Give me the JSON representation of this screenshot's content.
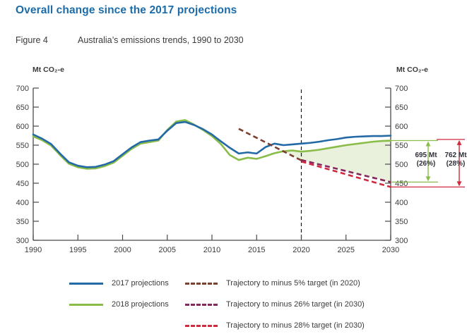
{
  "page": {
    "title": "Overall change since the 2017 projections",
    "figure_label": "Figure 4",
    "figure_caption": "Australia’s emissions trends, 1990 to 2030"
  },
  "colors": {
    "title_blue": "#1b6ca9",
    "text_dark": "#3b3b3b",
    "axis": "#4a4a4a",
    "blue": "#2269a6",
    "green": "#8abc49",
    "fill_green": "#e9f1dc",
    "brown": "#7d3f2e",
    "purple": "#84275c",
    "red": "#cf2a3e",
    "vline": "#1a1a1a",
    "annotation_text": "#30303a"
  },
  "chart_data": {
    "type": "line",
    "title": "Australia's emissions trends, 1990 to 2030",
    "unit_label": "Mt CO₂-e",
    "ylabel": "Mt CO₂-e",
    "xlabel": "",
    "ylim": [
      300,
      700
    ],
    "ytick_step": 50,
    "xticks": [
      1990,
      1995,
      2000,
      2005,
      2010,
      2015,
      2020,
      2025,
      2030
    ],
    "x_start": 1990,
    "x_end": 2030,
    "grid": false,
    "vline_year": 2020,
    "series": [
      {
        "name": "2017 projections",
        "style": "solid",
        "color_key": "blue",
        "x_start": 1990,
        "values": [
          578,
          567,
          553,
          528,
          505,
          496,
          492,
          493,
          499,
          508,
          526,
          544,
          558,
          562,
          565,
          588,
          608,
          611,
          603,
          592,
          578,
          560,
          543,
          528,
          531,
          528,
          545,
          554,
          550,
          552,
          554,
          556,
          559,
          563,
          566,
          570,
          572,
          573,
          574,
          574,
          575
        ]
      },
      {
        "name": "2018 projections",
        "style": "solid",
        "color_key": "green",
        "x_start": 1990,
        "values": [
          573,
          563,
          549,
          524,
          501,
          492,
          488,
          489,
          495,
          504,
          522,
          540,
          554,
          558,
          562,
          590,
          612,
          616,
          604,
          590,
          574,
          553,
          524,
          511,
          517,
          514,
          521,
          529,
          534,
          536,
          533,
          535,
          538,
          542,
          546,
          550,
          553,
          556,
          559,
          561,
          562
        ]
      },
      {
        "name": "Trajectory to minus 5% target (in 2020)",
        "style": "dashed",
        "color_key": "brown",
        "points": [
          [
            2013,
            593
          ],
          [
            2020,
            510
          ]
        ]
      },
      {
        "name": "Trajectory to minus 26% target (in 2030)",
        "style": "dashed",
        "color_key": "purple",
        "points": [
          [
            2020,
            511
          ],
          [
            2030,
            453
          ]
        ]
      },
      {
        "name": "Trajectory to minus 28% target (in 2030)",
        "style": "dashed",
        "color_key": "red",
        "points": [
          [
            2020,
            507
          ],
          [
            2030,
            440
          ]
        ]
      }
    ],
    "shade": {
      "top_series": "2018 projections",
      "start_year": 2018,
      "bottom_points": [
        [
          2018,
          533.7
        ],
        [
          2020,
          510
        ],
        [
          2030,
          453
        ]
      ],
      "fill_key": "fill_green"
    },
    "gap_annotations": [
      {
        "value_label": "695 Mt",
        "pct_label": "(26%)",
        "top_value": 562,
        "bottom_value": 453,
        "color_key": "green"
      },
      {
        "value_label": "762 Mt",
        "pct_label": "(28%)",
        "top_value": 565,
        "bottom_value": 440,
        "color_key": "red"
      }
    ]
  },
  "legend": {
    "items": [
      {
        "label": "2017 projections"
      },
      {
        "label": "2018 projections"
      },
      {
        "label": "Trajectory to minus 5% target (in 2020)"
      },
      {
        "label": "Trajectory to minus 26% target (in 2030)"
      },
      {
        "label": "Trajectory to minus 28% target (in 2030)"
      }
    ]
  }
}
